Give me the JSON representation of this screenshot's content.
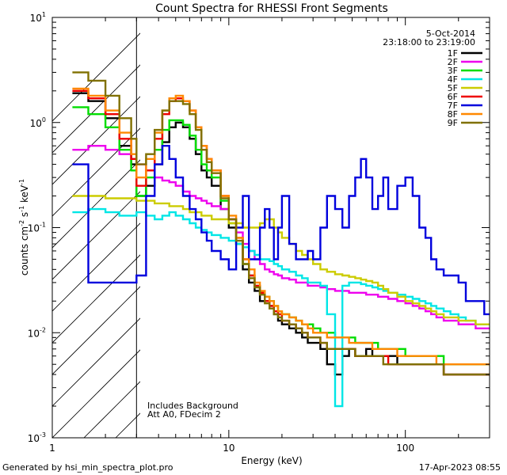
{
  "chart_data": {
    "type": "line",
    "title": "Count Spectra for RHESSI Front Segments",
    "xlabel": "Energy (keV)",
    "ylabel_parts": [
      "counts cm",
      "-2",
      " s",
      "-1",
      " keV",
      "-1"
    ],
    "xscale": "log",
    "yscale": "log",
    "xlim": [
      1,
      300
    ],
    "ylim": [
      0.001,
      10
    ],
    "x_ticks": [
      {
        "value": 1,
        "label": "1"
      },
      {
        "value": 10,
        "label": "10"
      },
      {
        "value": 100,
        "label": "100"
      }
    ],
    "y_ticks": [
      {
        "value": 10,
        "base": "10",
        "exp": "1"
      },
      {
        "value": 1,
        "base": "10",
        "exp": "0"
      },
      {
        "value": 0.1,
        "base": "10",
        "exp": "-1"
      },
      {
        "value": 0.01,
        "base": "10",
        "exp": "-2"
      },
      {
        "value": 0.001,
        "base": "10",
        "exp": "-3"
      }
    ],
    "date": "5-Oct-2014",
    "time_range": "23:18:00 to 23:19:00",
    "annotations": [
      "Includes Background",
      "Att A0, FDecim 2"
    ],
    "attenuator_energy_keV": 3,
    "energy_bins": [
      1.3,
      1.6,
      2.0,
      2.4,
      2.8,
      3.0,
      3.4,
      3.8,
      4.2,
      4.6,
      5.0,
      5.5,
      6.0,
      6.5,
      7.0,
      7.5,
      8.0,
      9.0,
      10,
      11,
      12,
      13,
      14,
      15,
      16,
      17,
      18,
      19,
      20,
      22,
      24,
      26,
      28,
      30,
      33,
      36,
      40,
      44,
      48,
      52,
      56,
      60,
      65,
      70,
      75,
      80,
      90,
      100,
      110,
      120,
      130,
      140,
      150,
      165,
      180,
      200,
      220,
      250,
      280,
      300
    ],
    "series": [
      {
        "name": "1F",
        "color": "#000000",
        "values": [
          1.9,
          1.6,
          1.1,
          0.6,
          0.4,
          0.2,
          0.25,
          0.4,
          0.65,
          0.9,
          1.0,
          0.9,
          0.7,
          0.5,
          0.35,
          0.3,
          0.25,
          0.15,
          0.1,
          0.07,
          0.04,
          0.03,
          0.025,
          0.02,
          0.02,
          0.018,
          0.015,
          0.013,
          0.012,
          0.011,
          0.01,
          0.009,
          0.008,
          0.008,
          0.007,
          0.005,
          0.004,
          0.006,
          0.007,
          0.006,
          0.006,
          0.007,
          0.006,
          0.006,
          0.006,
          0.006,
          0.005,
          0.005,
          0.005,
          0.005,
          0.005,
          0.005,
          0.005,
          0.004,
          0.004,
          0.004,
          0.004,
          0.004,
          0.004,
          0.004
        ]
      },
      {
        "name": "2F",
        "color": "#ee00ee",
        "values": [
          0.55,
          0.6,
          0.55,
          0.5,
          0.45,
          0.4,
          0.35,
          0.3,
          0.28,
          0.27,
          0.25,
          0.22,
          0.2,
          0.19,
          0.18,
          0.17,
          0.16,
          0.15,
          0.12,
          0.09,
          0.07,
          0.06,
          0.05,
          0.045,
          0.04,
          0.038,
          0.036,
          0.035,
          0.033,
          0.032,
          0.03,
          0.03,
          0.028,
          0.028,
          0.027,
          0.026,
          0.025,
          0.025,
          0.024,
          0.024,
          0.024,
          0.023,
          0.023,
          0.022,
          0.022,
          0.021,
          0.02,
          0.019,
          0.018,
          0.017,
          0.016,
          0.015,
          0.014,
          0.013,
          0.013,
          0.012,
          0.012,
          0.011,
          0.011,
          0.011
        ]
      },
      {
        "name": "3F",
        "color": "#00dd00",
        "values": [
          1.4,
          1.2,
          0.9,
          0.55,
          0.35,
          0.2,
          0.3,
          0.55,
          0.85,
          1.05,
          1.05,
          0.95,
          0.75,
          0.55,
          0.4,
          0.35,
          0.3,
          0.18,
          0.11,
          0.07,
          0.045,
          0.035,
          0.028,
          0.024,
          0.022,
          0.02,
          0.018,
          0.016,
          0.015,
          0.014,
          0.013,
          0.012,
          0.012,
          0.011,
          0.01,
          0.01,
          0.009,
          0.009,
          0.009,
          0.008,
          0.008,
          0.008,
          0.008,
          0.007,
          0.007,
          0.007,
          0.007,
          0.006,
          0.006,
          0.006,
          0.006,
          0.006,
          0.006,
          0.005,
          0.005,
          0.005,
          0.005,
          0.005,
          0.005,
          0.005
        ]
      },
      {
        "name": "4F",
        "color": "#00e6e6",
        "values": [
          0.14,
          0.15,
          0.14,
          0.13,
          0.13,
          0.14,
          0.13,
          0.12,
          0.13,
          0.14,
          0.13,
          0.12,
          0.11,
          0.1,
          0.095,
          0.09,
          0.085,
          0.08,
          0.075,
          0.07,
          0.065,
          0.06,
          0.055,
          0.05,
          0.05,
          0.048,
          0.045,
          0.043,
          0.04,
          0.038,
          0.035,
          0.033,
          0.03,
          0.03,
          0.028,
          0.015,
          0.002,
          0.028,
          0.03,
          0.03,
          0.029,
          0.028,
          0.027,
          0.026,
          0.025,
          0.024,
          0.023,
          0.022,
          0.021,
          0.02,
          0.019,
          0.018,
          0.017,
          0.016,
          0.015,
          0.014,
          0.013,
          0.012,
          0.012,
          0.012
        ]
      },
      {
        "name": "5F",
        "color": "#cccc00",
        "values": [
          0.2,
          0.2,
          0.19,
          0.19,
          0.19,
          0.18,
          0.18,
          0.17,
          0.17,
          0.16,
          0.16,
          0.15,
          0.14,
          0.14,
          0.13,
          0.13,
          0.12,
          0.12,
          0.11,
          0.11,
          0.1,
          0.1,
          0.1,
          0.11,
          0.12,
          0.12,
          0.1,
          0.09,
          0.08,
          0.07,
          0.06,
          0.055,
          0.05,
          0.045,
          0.04,
          0.038,
          0.036,
          0.035,
          0.034,
          0.033,
          0.032,
          0.031,
          0.03,
          0.028,
          0.026,
          0.024,
          0.022,
          0.02,
          0.019,
          0.018,
          0.017,
          0.016,
          0.015,
          0.014,
          0.014,
          0.013,
          0.013,
          0.012,
          0.012,
          0.012
        ]
      },
      {
        "name": "6F",
        "color": "#ee0000",
        "values": [
          2.0,
          1.7,
          1.2,
          0.7,
          0.45,
          0.25,
          0.35,
          0.7,
          1.2,
          1.6,
          1.7,
          1.6,
          1.3,
          0.9,
          0.6,
          0.45,
          0.35,
          0.2,
          0.12,
          0.08,
          0.05,
          0.035,
          0.028,
          0.024,
          0.02,
          0.018,
          0.016,
          0.015,
          0.013,
          0.012,
          0.011,
          0.01,
          0.009,
          0.009,
          0.008,
          0.007,
          0.007,
          0.007,
          0.007,
          0.006,
          0.006,
          0.006,
          0.006,
          0.006,
          0.006,
          0.005,
          0.005,
          0.005,
          0.005,
          0.005,
          0.005,
          0.005,
          0.005,
          0.004,
          0.004,
          0.004,
          0.004,
          0.004,
          0.004,
          0.004
        ]
      },
      {
        "name": "7F",
        "color": "#0000dd",
        "values": [
          0.4,
          0.03,
          0.03,
          0.03,
          0.03,
          0.035,
          0.2,
          0.4,
          0.6,
          0.45,
          0.3,
          0.2,
          0.15,
          0.12,
          0.09,
          0.075,
          0.06,
          0.05,
          0.04,
          0.1,
          0.2,
          0.05,
          0.05,
          0.1,
          0.15,
          0.1,
          0.05,
          0.1,
          0.2,
          0.07,
          0.05,
          0.05,
          0.06,
          0.05,
          0.1,
          0.2,
          0.15,
          0.1,
          0.2,
          0.3,
          0.45,
          0.3,
          0.15,
          0.2,
          0.3,
          0.15,
          0.25,
          0.3,
          0.2,
          0.1,
          0.08,
          0.05,
          0.04,
          0.035,
          0.035,
          0.03,
          0.02,
          0.02,
          0.015,
          0.015
        ]
      },
      {
        "name": "8F",
        "color": "#ff8800",
        "values": [
          2.1,
          1.8,
          1.3,
          0.8,
          0.5,
          0.3,
          0.45,
          0.8,
          1.3,
          1.7,
          1.8,
          1.6,
          1.3,
          0.9,
          0.6,
          0.45,
          0.35,
          0.2,
          0.13,
          0.08,
          0.05,
          0.04,
          0.03,
          0.025,
          0.022,
          0.02,
          0.018,
          0.016,
          0.015,
          0.014,
          0.013,
          0.012,
          0.011,
          0.01,
          0.01,
          0.009,
          0.009,
          0.009,
          0.008,
          0.008,
          0.008,
          0.008,
          0.007,
          0.007,
          0.007,
          0.007,
          0.006,
          0.006,
          0.006,
          0.006,
          0.006,
          0.006,
          0.005,
          0.005,
          0.005,
          0.005,
          0.005,
          0.005,
          0.005,
          0.005
        ]
      },
      {
        "name": "9F",
        "color": "#807000",
        "values": [
          3.0,
          2.5,
          1.8,
          1.1,
          0.7,
          0.4,
          0.5,
          0.85,
          1.3,
          1.6,
          1.6,
          1.5,
          1.2,
          0.85,
          0.55,
          0.42,
          0.33,
          0.19,
          0.12,
          0.075,
          0.045,
          0.033,
          0.027,
          0.023,
          0.019,
          0.017,
          0.015,
          0.014,
          0.013,
          0.012,
          0.011,
          0.01,
          0.009,
          0.009,
          0.008,
          0.007,
          0.007,
          0.007,
          0.007,
          0.006,
          0.006,
          0.006,
          0.006,
          0.006,
          0.005,
          0.005,
          0.005,
          0.005,
          0.005,
          0.005,
          0.005,
          0.005,
          0.005,
          0.004,
          0.004,
          0.004,
          0.004,
          0.004,
          0.004,
          0.004
        ]
      }
    ]
  },
  "footer": {
    "generator": "Generated by hsi_min_spectra_plot.pro",
    "timestamp": "17-Apr-2023 08:55"
  }
}
